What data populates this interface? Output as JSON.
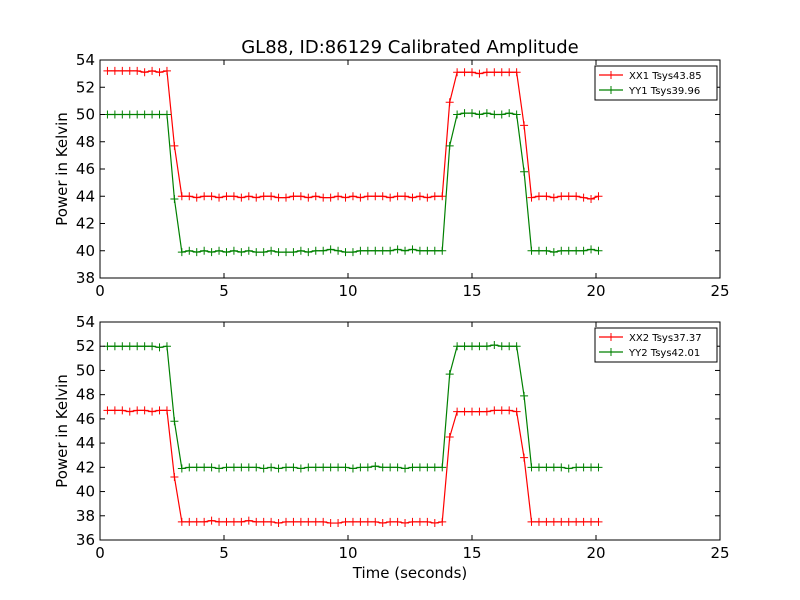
{
  "colors": {
    "red": "#ff0000",
    "green": "#008000",
    "frame": "#000000",
    "background": "#ffffff"
  },
  "figure": {
    "title": "GL88, ID:86129 Calibrated Amplitude",
    "xlabel": "Time (seconds)"
  },
  "chart_data": [
    {
      "type": "line",
      "title": "GL88, ID:86129 Calibrated Amplitude",
      "xlabel": "",
      "ylabel": "Power in Kelvin",
      "xlim": [
        0,
        25
      ],
      "ylim": [
        38,
        54
      ],
      "xticks": [
        "0",
        "5",
        "10",
        "15",
        "20",
        "25"
      ],
      "yticks": [
        "38",
        "40",
        "42",
        "44",
        "46",
        "48",
        "50",
        "52",
        "54"
      ],
      "grid": false,
      "legend": "top-right",
      "x": [
        0.3,
        0.6,
        0.9,
        1.2,
        1.5,
        1.8,
        2.1,
        2.4,
        2.7,
        3.0,
        3.3,
        3.6,
        3.9,
        4.2,
        4.5,
        4.8,
        5.1,
        5.4,
        5.7,
        6.0,
        6.3,
        6.6,
        6.9,
        7.2,
        7.5,
        7.8,
        8.1,
        8.4,
        8.7,
        9.0,
        9.3,
        9.6,
        9.9,
        10.2,
        10.5,
        10.8,
        11.1,
        11.4,
        11.7,
        12.0,
        12.3,
        12.6,
        12.9,
        13.2,
        13.5,
        13.8,
        14.1,
        14.4,
        14.7,
        15.0,
        15.3,
        15.6,
        15.9,
        16.2,
        16.5,
        16.8,
        17.1,
        17.4,
        17.7,
        18.0,
        18.3,
        18.6,
        18.9,
        19.2,
        19.5,
        19.8,
        20.1
      ],
      "series": [
        {
          "name": "XX1 Tsys43.85",
          "color": "#ff0000",
          "values": [
            53.2,
            53.2,
            53.2,
            53.2,
            53.2,
            53.1,
            53.2,
            53.1,
            53.2,
            47.7,
            44.0,
            44.0,
            43.9,
            44.0,
            44.0,
            43.9,
            44.0,
            44.0,
            43.9,
            44.0,
            43.9,
            44.0,
            44.0,
            43.9,
            43.9,
            44.0,
            44.0,
            43.9,
            44.0,
            43.9,
            43.9,
            44.0,
            43.9,
            44.0,
            43.9,
            44.0,
            44.0,
            44.0,
            43.9,
            44.0,
            44.0,
            43.9,
            44.0,
            43.9,
            44.0,
            44.0,
            50.9,
            53.1,
            53.1,
            53.1,
            53.0,
            53.1,
            53.1,
            53.1,
            53.1,
            53.1,
            49.2,
            43.9,
            44.0,
            44.0,
            43.9,
            44.0,
            44.0,
            44.0,
            43.9,
            43.8,
            44.0
          ]
        },
        {
          "name": "YY1 Tsys39.96",
          "color": "#008000",
          "values": [
            50.0,
            50.0,
            50.0,
            50.0,
            50.0,
            50.0,
            50.0,
            50.0,
            50.0,
            43.8,
            39.9,
            40.0,
            39.9,
            40.0,
            39.9,
            40.0,
            39.9,
            40.0,
            39.9,
            40.0,
            39.9,
            39.9,
            40.0,
            39.9,
            39.9,
            39.9,
            40.0,
            39.9,
            40.0,
            40.0,
            40.1,
            40.0,
            39.9,
            39.9,
            40.0,
            40.0,
            40.0,
            40.0,
            40.0,
            40.1,
            40.0,
            40.1,
            40.0,
            40.0,
            40.0,
            40.0,
            47.7,
            50.0,
            50.1,
            50.1,
            50.0,
            50.1,
            50.0,
            50.0,
            50.1,
            50.0,
            45.8,
            40.0,
            40.0,
            40.0,
            39.9,
            40.0,
            40.0,
            40.0,
            40.0,
            40.1,
            40.0
          ]
        }
      ]
    },
    {
      "type": "line",
      "title": "",
      "xlabel": "Time (seconds)",
      "ylabel": "Power in Kelvin",
      "xlim": [
        0,
        25
      ],
      "ylim": [
        36,
        54
      ],
      "xticks": [
        "0",
        "5",
        "10",
        "15",
        "20",
        "25"
      ],
      "yticks": [
        "36",
        "38",
        "40",
        "42",
        "44",
        "46",
        "48",
        "50",
        "52",
        "54"
      ],
      "grid": false,
      "legend": "top-right",
      "x": [
        0.3,
        0.6,
        0.9,
        1.2,
        1.5,
        1.8,
        2.1,
        2.4,
        2.7,
        3.0,
        3.3,
        3.6,
        3.9,
        4.2,
        4.5,
        4.8,
        5.1,
        5.4,
        5.7,
        6.0,
        6.3,
        6.6,
        6.9,
        7.2,
        7.5,
        7.8,
        8.1,
        8.4,
        8.7,
        9.0,
        9.3,
        9.6,
        9.9,
        10.2,
        10.5,
        10.8,
        11.1,
        11.4,
        11.7,
        12.0,
        12.3,
        12.6,
        12.9,
        13.2,
        13.5,
        13.8,
        14.1,
        14.4,
        14.7,
        15.0,
        15.3,
        15.6,
        15.9,
        16.2,
        16.5,
        16.8,
        17.1,
        17.4,
        17.7,
        18.0,
        18.3,
        18.6,
        18.9,
        19.2,
        19.5,
        19.8,
        20.1
      ],
      "series": [
        {
          "name": "XX2 Tsys37.37",
          "color": "#ff0000",
          "values": [
            46.7,
            46.7,
            46.7,
            46.6,
            46.7,
            46.7,
            46.6,
            46.7,
            46.7,
            41.2,
            37.5,
            37.5,
            37.5,
            37.5,
            37.6,
            37.5,
            37.5,
            37.5,
            37.5,
            37.6,
            37.5,
            37.5,
            37.5,
            37.4,
            37.5,
            37.5,
            37.5,
            37.5,
            37.5,
            37.5,
            37.4,
            37.4,
            37.5,
            37.5,
            37.5,
            37.5,
            37.5,
            37.4,
            37.5,
            37.5,
            37.4,
            37.5,
            37.5,
            37.5,
            37.4,
            37.5,
            44.5,
            46.6,
            46.6,
            46.6,
            46.6,
            46.6,
            46.7,
            46.7,
            46.7,
            46.6,
            42.8,
            37.5,
            37.5,
            37.5,
            37.5,
            37.5,
            37.5,
            37.5,
            37.5,
            37.5,
            37.5
          ]
        },
        {
          "name": "YY2 Tsys42.01",
          "color": "#008000",
          "values": [
            52.0,
            52.0,
            52.0,
            52.0,
            52.0,
            52.0,
            52.0,
            51.9,
            52.0,
            45.8,
            41.9,
            42.0,
            42.0,
            42.0,
            42.0,
            41.9,
            42.0,
            42.0,
            42.0,
            42.0,
            42.0,
            41.9,
            42.0,
            41.9,
            42.0,
            42.0,
            41.9,
            42.0,
            42.0,
            42.0,
            42.0,
            42.0,
            42.0,
            41.9,
            42.0,
            42.0,
            42.1,
            42.0,
            42.0,
            42.0,
            41.9,
            42.0,
            42.0,
            42.0,
            42.0,
            42.0,
            49.7,
            52.0,
            52.0,
            52.0,
            52.0,
            52.0,
            52.1,
            52.0,
            52.0,
            52.0,
            47.9,
            42.0,
            42.0,
            42.0,
            42.0,
            42.0,
            41.9,
            42.0,
            42.0,
            42.0,
            42.0
          ]
        }
      ]
    }
  ]
}
